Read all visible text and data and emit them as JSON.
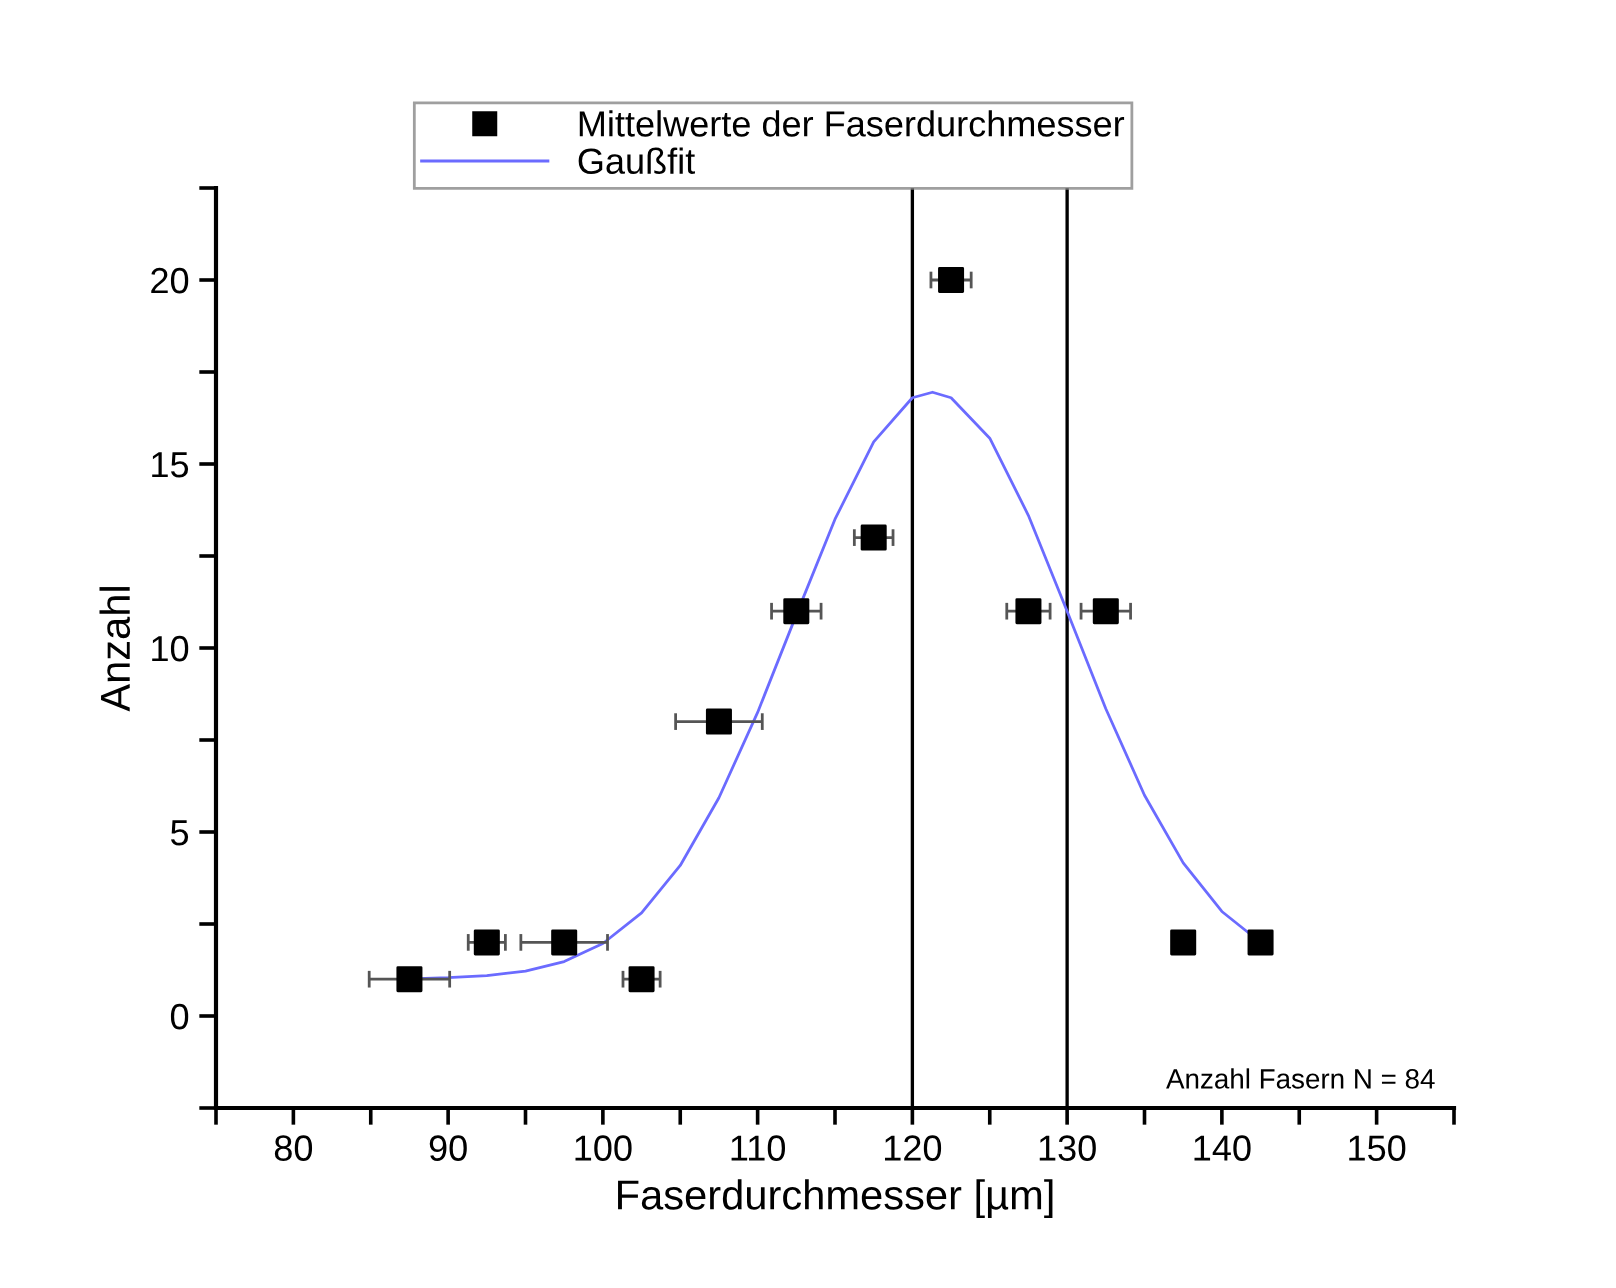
{
  "chart_data": {
    "type": "scatter",
    "xlabel": "Faserdurchmesser [µm]",
    "ylabel": "Anzahl",
    "series": [
      {
        "name": "Mittelwerte der Faserdurchmesser",
        "color": "#000000",
        "marker": "square",
        "x": [
          87.5,
          92.5,
          97.5,
          102.5,
          107.5,
          112.5,
          117.5,
          122.5,
          127.5,
          132.5,
          137.5,
          142.5
        ],
        "values": [
          1,
          2,
          2,
          1,
          8,
          11,
          13,
          20,
          11,
          11,
          2,
          2
        ],
        "xerrors": [
          2.6,
          1.2,
          2.8,
          1.2,
          2.8,
          1.6,
          1.25,
          1.3,
          1.4,
          1.6,
          null,
          null
        ]
      },
      {
        "name": "Gaußfit",
        "type": "line",
        "color": "#6b6bff",
        "marker": "none",
        "line_style": "solid",
        "x": [
          87.5,
          90,
          92.5,
          95,
          97.5,
          100,
          102.5,
          105,
          107.5,
          110,
          112.5,
          115,
          117.5,
          120,
          121.3,
          122.5,
          125,
          127.5,
          130,
          132.5,
          135,
          137.5,
          140,
          142.5
        ],
        "values": [
          1.01,
          1.04,
          1.1,
          1.22,
          1.48,
          1.97,
          2.8,
          4.09,
          5.93,
          8.25,
          10.9,
          13.5,
          15.6,
          16.8,
          16.95,
          16.8,
          15.7,
          13.6,
          11.0,
          8.35,
          6.0,
          4.16,
          2.84,
          2.0
        ]
      }
    ],
    "ref_lines": [
      {
        "axis": "x",
        "value": 120,
        "label": null,
        "color": "#000000"
      },
      {
        "axis": "x",
        "value": 130,
        "label": null,
        "color": "#000000"
      }
    ],
    "annotations": [
      "Anzahl Fasern N = 84"
    ],
    "xlim": [
      75,
      155
    ],
    "xticks": [
      {
        "value": 75,
        "label": null
      },
      80,
      {
        "value": 85,
        "label": null
      },
      90,
      {
        "value": 95,
        "label": null
      },
      100,
      {
        "value": 105,
        "label": null
      },
      110,
      {
        "value": 115,
        "label": null
      },
      120,
      {
        "value": 125,
        "label": null
      },
      130,
      {
        "value": 135,
        "label": null
      },
      140,
      {
        "value": 145,
        "label": null
      },
      150,
      {
        "value": 155,
        "label": null
      }
    ],
    "ylim": [
      -2.5,
      22.5
    ],
    "yticks": [
      {
        "value": -2.5,
        "label": null
      },
      0,
      {
        "value": 2.5,
        "label": null
      },
      5,
      {
        "value": 7.5,
        "label": null
      },
      10,
      {
        "value": 12.5,
        "label": null
      },
      15,
      {
        "value": 17.5,
        "label": null
      },
      20,
      {
        "value": 22.5,
        "label": null
      }
    ],
    "grid": false,
    "legend": "top"
  }
}
